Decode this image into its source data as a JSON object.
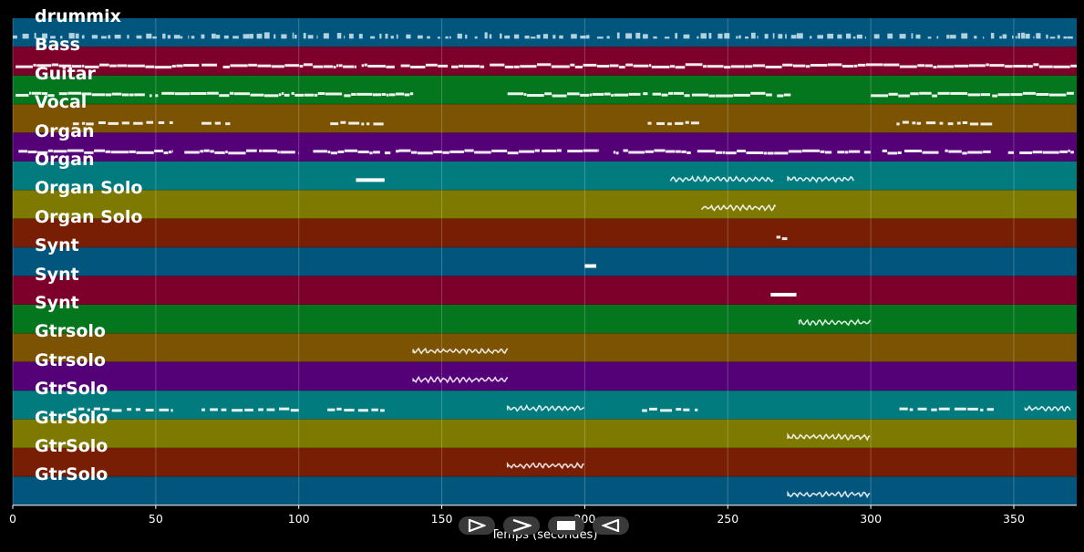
{
  "tracks": [
    {
      "label": "drummix",
      "color": "#02567e"
    },
    {
      "label": "Bass",
      "color": "#7d002a"
    },
    {
      "label": "Guitar",
      "color": "#03761e"
    },
    {
      "label": "Vocal",
      "color": "#7b5302"
    },
    {
      "label": "Organ",
      "color": "#540177"
    },
    {
      "label": "Organ",
      "color": "#027b7e"
    },
    {
      "label": "Organ Solo",
      "color": "#7e7a01"
    },
    {
      "label": "Organ Solo",
      "color": "#781e04"
    },
    {
      "label": "Synt",
      "color": "#02567e"
    },
    {
      "label": "Synt",
      "color": "#7d002a"
    },
    {
      "label": "Synt",
      "color": "#03761e"
    },
    {
      "label": "Gtrsolo",
      "color": "#7b5302"
    },
    {
      "label": "Gtrsolo",
      "color": "#540177"
    },
    {
      "label": "GtrSolo",
      "color": "#027b7e"
    },
    {
      "label": "GtrSolo",
      "color": "#7e7a01"
    },
    {
      "label": "GtrSolo",
      "color": "#781e04"
    },
    {
      "label": "GtrSolo",
      "color": "#02567e"
    }
  ],
  "x_axis": {
    "label": "Temps (secondes)",
    "ticks": [
      {
        "value": 0,
        "label": "0"
      },
      {
        "value": 50,
        "label": "50"
      },
      {
        "value": 100,
        "label": "100"
      },
      {
        "value": 150,
        "label": "150"
      },
      {
        "value": 200,
        "label": "200"
      },
      {
        "value": 250,
        "label": "250"
      },
      {
        "value": 300,
        "label": "300"
      },
      {
        "value": 350,
        "label": "350"
      }
    ],
    "range": [
      0,
      372
    ]
  },
  "note_segments": [
    {
      "track": 0,
      "start": 0,
      "end": 372,
      "style": "dense"
    },
    {
      "track": 1,
      "start": 1,
      "end": 372,
      "style": "line"
    },
    {
      "track": 2,
      "start": 1,
      "end": 140,
      "style": "line"
    },
    {
      "track": 2,
      "start": 173,
      "end": 272,
      "style": "line"
    },
    {
      "track": 2,
      "start": 300,
      "end": 371,
      "style": "line"
    },
    {
      "track": 3,
      "start": 21,
      "end": 56,
      "style": "dash"
    },
    {
      "track": 3,
      "start": 66,
      "end": 76,
      "style": "dash"
    },
    {
      "track": 3,
      "start": 111,
      "end": 130,
      "style": "dash"
    },
    {
      "track": 3,
      "start": 222,
      "end": 240,
      "style": "dash"
    },
    {
      "track": 3,
      "start": 309,
      "end": 343,
      "style": "dash"
    },
    {
      "track": 4,
      "start": 2,
      "end": 56,
      "style": "line"
    },
    {
      "track": 4,
      "start": 60,
      "end": 100,
      "style": "line"
    },
    {
      "track": 4,
      "start": 105,
      "end": 135,
      "style": "line"
    },
    {
      "track": 4,
      "start": 135,
      "end": 205,
      "style": "line"
    },
    {
      "track": 4,
      "start": 210,
      "end": 300,
      "style": "line"
    },
    {
      "track": 4,
      "start": 304,
      "end": 342,
      "style": "line"
    },
    {
      "track": 4,
      "start": 348,
      "end": 371,
      "style": "line"
    },
    {
      "track": 5,
      "start": 120,
      "end": 130,
      "style": "block"
    },
    {
      "track": 5,
      "start": 230,
      "end": 266,
      "style": "wave"
    },
    {
      "track": 5,
      "start": 271,
      "end": 294,
      "style": "wave"
    },
    {
      "track": 6,
      "start": 241,
      "end": 267,
      "style": "wave"
    },
    {
      "track": 7,
      "start": 267,
      "end": 272,
      "style": "dash"
    },
    {
      "track": 8,
      "start": 200,
      "end": 204,
      "style": "block"
    },
    {
      "track": 9,
      "start": 265,
      "end": 274,
      "style": "block"
    },
    {
      "track": 10,
      "start": 275,
      "end": 300,
      "style": "wave"
    },
    {
      "track": 11,
      "start": 140,
      "end": 173,
      "style": "wave"
    },
    {
      "track": 12,
      "start": 140,
      "end": 173,
      "style": "wave"
    },
    {
      "track": 13,
      "start": 21,
      "end": 56,
      "style": "dash"
    },
    {
      "track": 13,
      "start": 66,
      "end": 100,
      "style": "dash"
    },
    {
      "track": 13,
      "start": 110,
      "end": 130,
      "style": "dash"
    },
    {
      "track": 13,
      "start": 173,
      "end": 200,
      "style": "wave"
    },
    {
      "track": 13,
      "start": 220,
      "end": 240,
      "style": "dash"
    },
    {
      "track": 13,
      "start": 310,
      "end": 343,
      "style": "dash"
    },
    {
      "track": 13,
      "start": 354,
      "end": 370,
      "style": "wave"
    },
    {
      "track": 14,
      "start": 271,
      "end": 300,
      "style": "wave"
    },
    {
      "track": 15,
      "start": 173,
      "end": 200,
      "style": "wave"
    },
    {
      "track": 16,
      "start": 271,
      "end": 300,
      "style": "wave"
    }
  ],
  "transport": [
    {
      "name": "play-button",
      "icon": "play-outline-icon"
    },
    {
      "name": "next-button",
      "icon": "chevron-right-icon"
    },
    {
      "name": "stop-button",
      "icon": "stop-icon"
    },
    {
      "name": "back-button",
      "icon": "play-reverse-icon"
    }
  ]
}
